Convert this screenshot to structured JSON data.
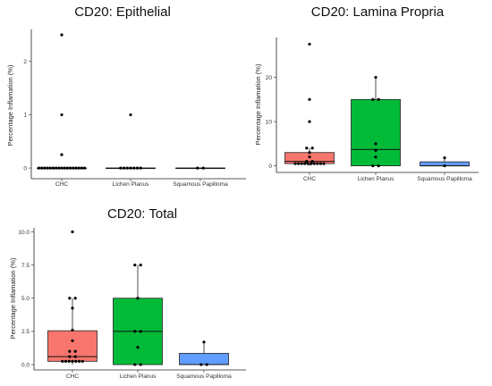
{
  "chart_data": [
    {
      "type": "box",
      "title": "CD20: Epithelial",
      "ylabel": "Percentage Inflamation (%)",
      "xlabel": "",
      "categories": [
        "CHC",
        "Lichen Planus",
        "Squamous Papilloma"
      ],
      "ylim": [
        -0.2,
        2.6
      ],
      "yticks": [
        0,
        1,
        2
      ],
      "ytick_labels": [
        "0",
        "1",
        "2"
      ],
      "box_colors": [
        "#f8766d",
        "#00ba38",
        "#619cff"
      ],
      "groups": [
        {
          "name": "CHC",
          "q1": 0,
          "median": 0,
          "q3": 0,
          "whisker_low": 0,
          "whisker_high": 0,
          "points": [
            2.5,
            1,
            0.25,
            0,
            0,
            0,
            0,
            0,
            0,
            0,
            0,
            0,
            0,
            0,
            0,
            0,
            0,
            0,
            0,
            0
          ]
        },
        {
          "name": "Lichen Planus",
          "q1": 0,
          "median": 0,
          "q3": 0,
          "whisker_low": 0,
          "whisker_high": 0,
          "points": [
            1,
            0,
            0,
            0,
            0,
            0,
            0,
            0
          ]
        },
        {
          "name": "Squamous Papilloma",
          "q1": 0,
          "median": 0,
          "q3": 0,
          "whisker_low": 0,
          "whisker_high": 0,
          "points": [
            0,
            0
          ]
        }
      ]
    },
    {
      "type": "box",
      "title": "CD20: Lamina Propria",
      "ylabel": "Percentage Inflamation (%)",
      "xlabel": "",
      "categories": [
        "CHC",
        "Lichen Planus",
        "Squamous Papilloma"
      ],
      "ylim": [
        -1.5,
        29
      ],
      "yticks": [
        0,
        10,
        20
      ],
      "ytick_labels": [
        "0",
        "10",
        "20"
      ],
      "box_colors": [
        "#f8766d",
        "#00ba38",
        "#619cff"
      ],
      "groups": [
        {
          "name": "CHC",
          "q1": 0.5,
          "median": 1,
          "q3": 3,
          "whisker_low": 0,
          "whisker_high": 4,
          "points": [
            27.5,
            15,
            10,
            4,
            4,
            3,
            2,
            1,
            1,
            0.5,
            0.5,
            0.5,
            0.5,
            0.5,
            0.5,
            0.5,
            0.5,
            0.5,
            0.5
          ]
        },
        {
          "name": "Lichen Planus",
          "q1": 0,
          "median": 3.7,
          "q3": 15,
          "whisker_low": 0,
          "whisker_high": 20,
          "points": [
            20,
            15,
            15,
            5,
            3.5,
            2,
            0,
            0
          ]
        },
        {
          "name": "Squamous Papilloma",
          "q1": 0,
          "median": 0,
          "q3": 0.9,
          "whisker_low": 0,
          "whisker_high": 1.8,
          "points": [
            1.8,
            0
          ]
        }
      ]
    },
    {
      "type": "box",
      "title": "CD20: Total",
      "ylabel": "Percentage Inflamation (%)",
      "xlabel": "",
      "categories": [
        "CHC",
        "Lichen Planus",
        "Squamous Papilloma"
      ],
      "ylim": [
        -0.4,
        10.3
      ],
      "yticks": [
        0,
        2.5,
        5,
        7.5,
        10
      ],
      "ytick_labels": [
        "0.0",
        "2.5",
        "5.0",
        "7.5",
        "10.0"
      ],
      "box_colors": [
        "#f8766d",
        "#00ba38",
        "#619cff"
      ],
      "groups": [
        {
          "name": "CHC",
          "q1": 0.25,
          "median": 0.6,
          "q3": 2.55,
          "whisker_low": 0,
          "whisker_high": 5,
          "points": [
            10,
            5,
            5,
            4.25,
            2.6,
            1.8,
            1,
            1,
            0.6,
            0.6,
            0.25,
            0.25,
            0.25,
            0.25,
            0.25,
            0.25,
            0.25
          ]
        },
        {
          "name": "Lichen Planus",
          "q1": 0,
          "median": 2.5,
          "q3": 5,
          "whisker_low": 0,
          "whisker_high": 7.5,
          "points": [
            7.5,
            7.5,
            5,
            2.5,
            2.5,
            1.3,
            0,
            0
          ]
        },
        {
          "name": "Squamous Papilloma",
          "q1": 0,
          "median": 0,
          "q3": 0.85,
          "whisker_low": 0,
          "whisker_high": 1.7,
          "points": [
            1.7,
            0,
            0
          ]
        }
      ]
    }
  ]
}
